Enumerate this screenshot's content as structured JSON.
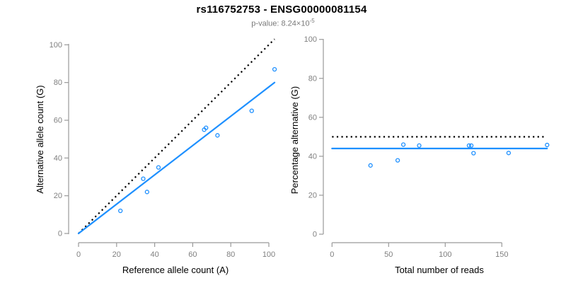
{
  "header": {
    "title": "rs116752753 - ENSG00000081154",
    "subtitle_prefix": "p-value: 8.24×10",
    "subtitle_exponent": "-5"
  },
  "colors": {
    "accent_blue": "#1E90FF",
    "line_black": "#000000",
    "axis_gray": "#9a9a9a",
    "tick_label_gray": "#7f7f7f",
    "axis_title_black": "#000000"
  },
  "chart_data": [
    {
      "type": "scatter",
      "panel": "left",
      "xlabel": "Reference allele count (A)",
      "ylabel": "Alternative allele count (G)",
      "xlim": [
        0,
        103
      ],
      "ylim": [
        0,
        103
      ],
      "xticks": [
        0,
        20,
        40,
        60,
        80,
        100
      ],
      "yticks": [
        0,
        20,
        40,
        60,
        80,
        100
      ],
      "grid": false,
      "points": [
        [
          22,
          12
        ],
        [
          34,
          29
        ],
        [
          36,
          22
        ],
        [
          42,
          35
        ],
        [
          66,
          55
        ],
        [
          67,
          56
        ],
        [
          73,
          52
        ],
        [
          91,
          65
        ],
        [
          103,
          87
        ]
      ],
      "lines": [
        {
          "name": "identity-line",
          "style": "dotted",
          "color": "#000000",
          "from": [
            0,
            0
          ],
          "to": [
            103,
            103
          ]
        },
        {
          "name": "regression-line",
          "style": "solid",
          "color": "#1E90FF",
          "from": [
            0,
            0
          ],
          "to": [
            103,
            80
          ]
        }
      ]
    },
    {
      "type": "scatter",
      "panel": "right",
      "xlabel": "Total number of reads",
      "ylabel": "Percentage alternative (G)",
      "xlim": [
        0,
        190
      ],
      "ylim": [
        0,
        100
      ],
      "xticks": [
        0,
        50,
        100,
        150
      ],
      "yticks": [
        0,
        20,
        40,
        60,
        80,
        100
      ],
      "grid": false,
      "points": [
        [
          34,
          35.3
        ],
        [
          58,
          37.9
        ],
        [
          63,
          46.0
        ],
        [
          77,
          45.5
        ],
        [
          121,
          45.5
        ],
        [
          123,
          45.5
        ],
        [
          125,
          41.6
        ],
        [
          156,
          41.7
        ],
        [
          190,
          45.8
        ]
      ],
      "lines": [
        {
          "name": "expected-percentage-line",
          "style": "dotted",
          "color": "#000000",
          "from": [
            0,
            50
          ],
          "to": [
            187,
            50
          ]
        },
        {
          "name": "observed-percentage-line",
          "style": "solid",
          "color": "#1E90FF",
          "from": [
            0,
            44
          ],
          "to": [
            190,
            44
          ]
        }
      ]
    }
  ]
}
